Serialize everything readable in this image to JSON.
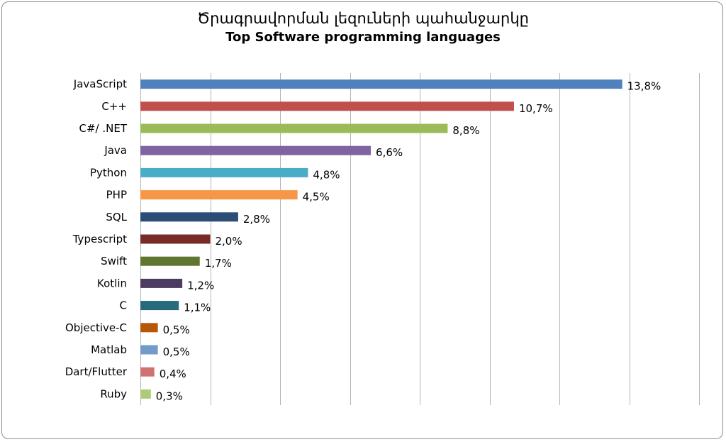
{
  "chart_data": {
    "type": "bar",
    "orientation": "horizontal",
    "title": "Ծրագրավորման լեզուների պահանջարկը",
    "subtitle": "Top Software programming languages",
    "categories": [
      "JavaScript",
      "C++",
      "C#/ .NET",
      "Java",
      "Python",
      "PHP",
      "SQL",
      "Typescript",
      "Swift",
      "Kotlin",
      "C",
      "Objective-C",
      "Matlab",
      "Dart/Flutter",
      "Ruby"
    ],
    "values": [
      13.8,
      10.7,
      8.8,
      6.6,
      4.8,
      4.5,
      2.8,
      2.0,
      1.7,
      1.2,
      1.1,
      0.5,
      0.5,
      0.4,
      0.3
    ],
    "value_labels": [
      "13,8%",
      "10,7%",
      "8,8%",
      "6,6%",
      "4,8%",
      "4,5%",
      "2,8%",
      "2,0%",
      "1,7%",
      "1,2%",
      "1,1%",
      "0,5%",
      "0,5%",
      "0,4%",
      "0,3%"
    ],
    "colors": [
      "#4F81BD",
      "#C0504D",
      "#9BBB59",
      "#8064A2",
      "#4BACC6",
      "#F79646",
      "#2C4D75",
      "#772C2A",
      "#5F7530",
      "#4D3B62",
      "#276A7C",
      "#B65708",
      "#729ACA",
      "#CD7371",
      "#AFC97A"
    ],
    "xlim": [
      0,
      16
    ],
    "grid": true,
    "legend": "none"
  }
}
